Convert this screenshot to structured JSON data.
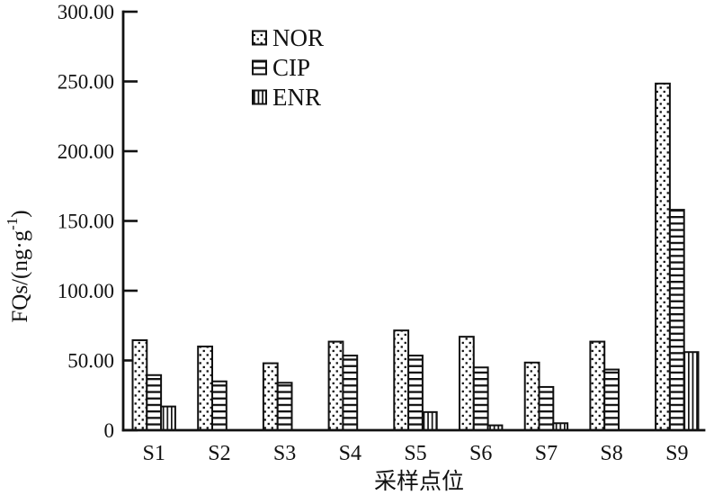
{
  "chart_data": {
    "type": "bar",
    "title": "",
    "xlabel": "采样点位",
    "ylabel": "FQs/(ng·g⁻¹)",
    "ylabel_parts": {
      "pre": "FQs/(ng·g",
      "sup": "-1",
      "post": ")"
    },
    "categories": [
      "S1",
      "S2",
      "S3",
      "S4",
      "S5",
      "S6",
      "S7",
      "S8",
      "S9"
    ],
    "series": [
      {
        "name": "NOR",
        "hatch": "dots",
        "values": [
          64.5,
          60,
          48,
          63.5,
          71.5,
          67,
          48.5,
          63.5,
          248.5
        ]
      },
      {
        "name": "CIP",
        "hatch": "hlines",
        "values": [
          39.5,
          35,
          34,
          53.5,
          53.5,
          45,
          31,
          43.5,
          158
        ]
      },
      {
        "name": "ENR",
        "hatch": "vlines",
        "values": [
          17,
          0,
          0,
          0,
          13,
          3.5,
          5,
          0,
          56
        ]
      }
    ],
    "ylim": [
      0,
      300
    ],
    "yticks": [
      {
        "value": 0,
        "label": "0"
      },
      {
        "value": 50,
        "label": "50.00"
      },
      {
        "value": 100,
        "label": "100.00"
      },
      {
        "value": 150,
        "label": "150.00"
      },
      {
        "value": 200,
        "label": "200.00"
      },
      {
        "value": 250,
        "label": "250.00"
      },
      {
        "value": 300,
        "label": "300.00"
      }
    ],
    "legend": {
      "position": "upper-center-left",
      "entries": [
        "NOR",
        "CIP",
        "ENR"
      ]
    },
    "grid": false,
    "colors": {
      "ink": "#111111",
      "background": "#ffffff"
    }
  }
}
